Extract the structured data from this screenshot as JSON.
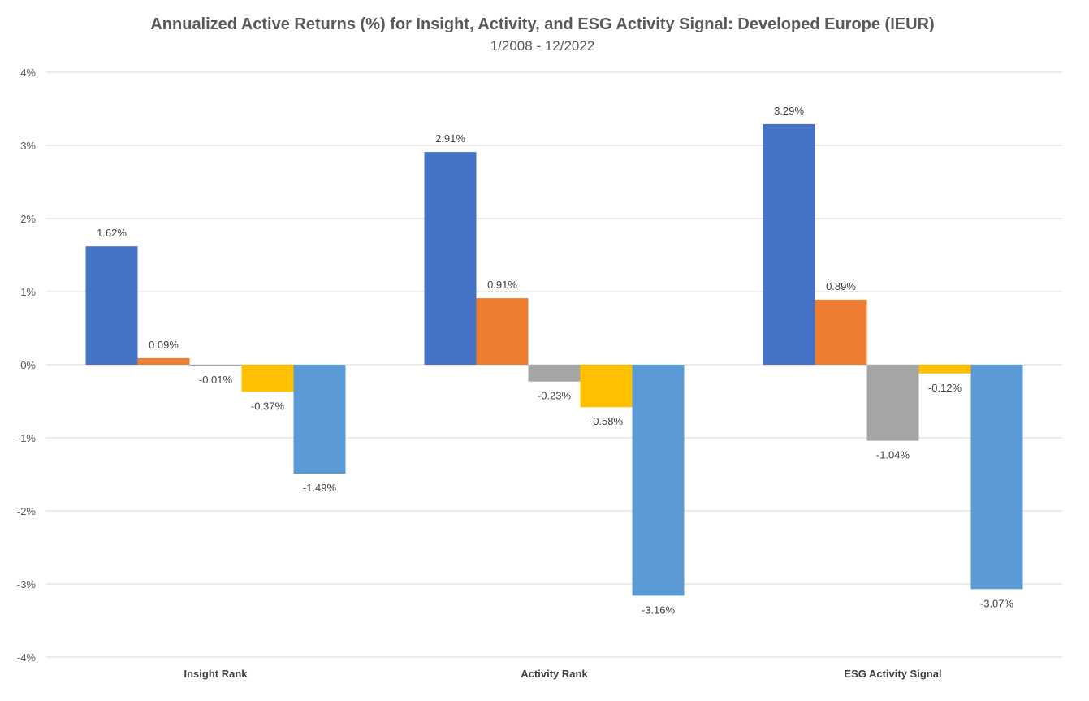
{
  "chart_data": {
    "type": "bar",
    "title": "Annualized Active Returns (%) for Insight, Activity, and ESG Activity Signal: Developed Europe (IEUR)",
    "subtitle": "1/2008 - 12/2022",
    "categories": [
      "Insight Rank",
      "Activity Rank",
      "ESG Activity Signal"
    ],
    "series": [
      {
        "name": "Series 1",
        "color": "#4472C4",
        "values": [
          1.62,
          2.91,
          3.29
        ],
        "labels": [
          "1.62%",
          "2.91%",
          "3.29%"
        ]
      },
      {
        "name": "Series 2",
        "color": "#ED7D31",
        "values": [
          0.09,
          0.91,
          0.89
        ],
        "labels": [
          "0.09%",
          "0.91%",
          "0.89%"
        ]
      },
      {
        "name": "Series 3",
        "color": "#A5A5A5",
        "values": [
          -0.01,
          -0.23,
          -1.04
        ],
        "labels": [
          "-0.01%",
          "-0.23%",
          "-1.04%"
        ]
      },
      {
        "name": "Series 4",
        "color": "#FFC000",
        "values": [
          -0.37,
          -0.58,
          -0.12
        ],
        "labels": [
          "-0.37%",
          "-0.58%",
          "-0.12%"
        ]
      },
      {
        "name": "Series 5",
        "color": "#5B9BD5",
        "values": [
          -1.49,
          -3.16,
          -3.07
        ],
        "labels": [
          "-1.49%",
          "-3.16%",
          "-3.07%"
        ]
      }
    ],
    "ylim": [
      -4,
      4
    ],
    "yticks": [
      4,
      3,
      2,
      1,
      0,
      -1,
      -2,
      -3,
      -4
    ],
    "ytick_labels": [
      "4%",
      "3%",
      "2%",
      "1%",
      "0%",
      "-1%",
      "-2%",
      "-3%",
      "-4%"
    ],
    "grid": true,
    "legend": "none"
  }
}
